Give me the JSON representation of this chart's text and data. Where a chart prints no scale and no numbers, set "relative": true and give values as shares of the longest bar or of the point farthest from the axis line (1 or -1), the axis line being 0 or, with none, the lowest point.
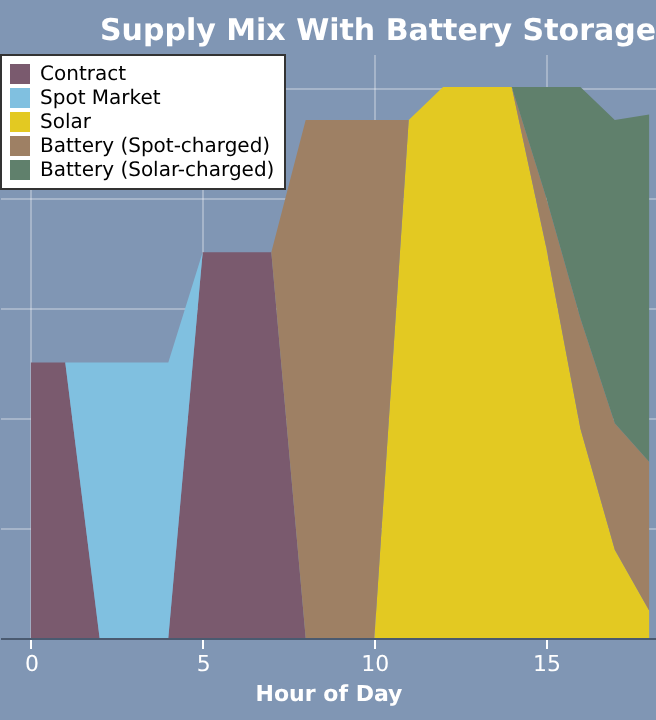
{
  "chart_data": {
    "type": "area",
    "stacked": true,
    "relative": true,
    "title": "Supply Mix With Battery Storage",
    "xlabel": "Hour of Day",
    "x": [
      0,
      1,
      2,
      3,
      4,
      5,
      6,
      7,
      8,
      9,
      10,
      11,
      12,
      13,
      14,
      15,
      16,
      17,
      18
    ],
    "xlim": [
      -0.9,
      18.2
    ],
    "xticks": [
      0,
      5,
      10,
      15
    ],
    "grid": true,
    "legend": "top left",
    "series": [
      {
        "name": "Contract",
        "color": "#7a5a6e",
        "values": [
          0.5,
          0.5,
          0,
          null,
          0,
          0.7,
          0.7,
          0.7,
          0,
          null,
          null,
          null,
          null,
          null,
          null,
          null,
          null,
          null,
          null
        ]
      },
      {
        "name": "Spot Market",
        "color": "#80c0e0",
        "values": [
          null,
          0,
          0.5,
          0.5,
          0.5,
          0,
          null,
          null,
          null,
          null,
          null,
          null,
          null,
          null,
          null,
          null,
          null,
          null,
          null
        ]
      },
      {
        "name": "Solar",
        "color": "#e3c922",
        "values": [
          null,
          null,
          null,
          null,
          null,
          null,
          null,
          null,
          null,
          null,
          0,
          0.94,
          1,
          1,
          1,
          0.71,
          0.38,
          0.16,
          0.05
        ]
      },
      {
        "name": "Battery (Spot-charged)",
        "color": "#9e8064",
        "values": [
          null,
          null,
          null,
          null,
          null,
          null,
          null,
          0,
          0.94,
          0.94,
          0.94,
          0,
          null,
          null,
          0,
          0.09,
          0.2,
          0.23,
          0.27
        ]
      },
      {
        "name": "Battery (Solar-charged)",
        "color": "#60806c",
        "values": [
          null,
          null,
          null,
          null,
          null,
          null,
          null,
          null,
          null,
          null,
          null,
          null,
          null,
          null,
          0,
          0.2,
          0.42,
          0.55,
          0.63
        ]
      }
    ]
  }
}
